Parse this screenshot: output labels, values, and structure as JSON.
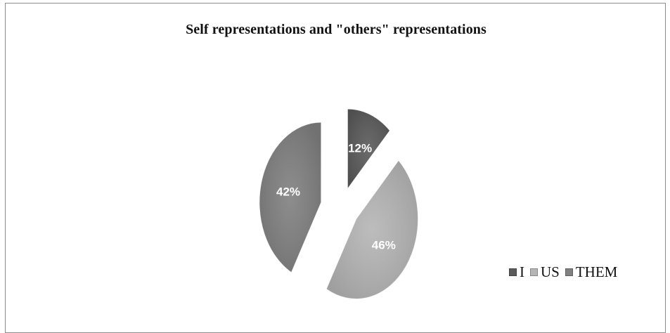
{
  "chart_data": {
    "type": "pie",
    "title": "Self representations and \"others\" representations",
    "labels": [
      "I",
      "US",
      "THEM"
    ],
    "values": [
      12,
      46,
      42
    ],
    "data_labels": [
      "12%",
      "46%",
      "42%"
    ],
    "colors": [
      "#5a5a5a",
      "#b5b5b5",
      "#808080"
    ],
    "exploded": true,
    "legend_position": "bottom-right"
  }
}
